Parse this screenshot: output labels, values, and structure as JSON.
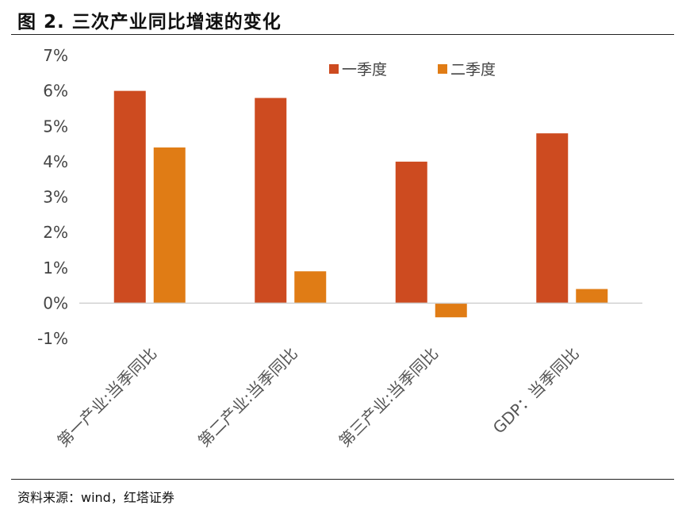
{
  "title": "图 2. 三次产业同比增速的变化",
  "source": "资料来源：wind，红塔证券",
  "chart_data": {
    "type": "bar",
    "categories": [
      "第一产业:当季同比",
      "第二产业:当季同比",
      "第三产业:当季同比",
      "GDP：当季同比"
    ],
    "series": [
      {
        "name": "一季度",
        "values": [
          6.0,
          5.8,
          4.0,
          4.8
        ]
      },
      {
        "name": "二季度",
        "values": [
          4.4,
          0.9,
          -0.4,
          0.4
        ]
      }
    ],
    "colors": [
      "#cd4b20",
      "#e07c15"
    ],
    "ylim": [
      -1,
      7
    ],
    "yticks": [
      7,
      6,
      5,
      4,
      3,
      2,
      1,
      0,
      -1
    ],
    "ytick_labels": [
      "7%",
      "6%",
      "5%",
      "4%",
      "3%",
      "2%",
      "1%",
      "0%",
      "-1%"
    ],
    "legend_position": "top-right",
    "grid": false
  }
}
